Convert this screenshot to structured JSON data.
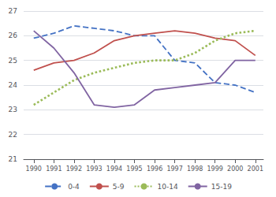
{
  "chart_data": {
    "type": "line",
    "x": [
      1990,
      1991,
      1992,
      1993,
      1994,
      1995,
      1996,
      1997,
      1998,
      1999,
      2000,
      2001
    ],
    "series": [
      {
        "name": "0-4",
        "color": "#4472C4",
        "line_style": "dashed",
        "values": [
          25.9,
          26.1,
          26.4,
          26.3,
          26.2,
          26.0,
          26.0,
          25.0,
          24.9,
          24.1,
          24.0,
          23.7
        ]
      },
      {
        "name": "5-9",
        "color": "#C0504D",
        "line_style": "solid",
        "values": [
          24.6,
          24.9,
          25.0,
          25.3,
          25.8,
          26.0,
          26.1,
          26.2,
          26.1,
          25.9,
          25.8,
          25.2
        ]
      },
      {
        "name": "10-14",
        "color": "#9BBB59",
        "line_style": "dotted",
        "values": [
          23.2,
          23.7,
          24.2,
          24.5,
          24.7,
          24.9,
          25.0,
          25.0,
          25.3,
          25.8,
          26.1,
          26.2
        ]
      },
      {
        "name": "15-19",
        "color": "#8064A2",
        "line_style": "solid",
        "values": [
          26.2,
          25.5,
          24.5,
          23.2,
          23.1,
          23.2,
          23.8,
          23.9,
          24.0,
          24.1,
          25.0,
          25.0
        ]
      }
    ],
    "xlim": [
      1989.5,
      2001.4
    ],
    "xticks": [
      1990,
      1991,
      1992,
      1993,
      1994,
      1995,
      1996,
      1997,
      1998,
      1999,
      2000,
      2001
    ],
    "ylim": [
      21,
      27
    ],
    "yticks": [
      21,
      22,
      23,
      24,
      25,
      26,
      27
    ],
    "grid": true,
    "legend": "bottom"
  }
}
